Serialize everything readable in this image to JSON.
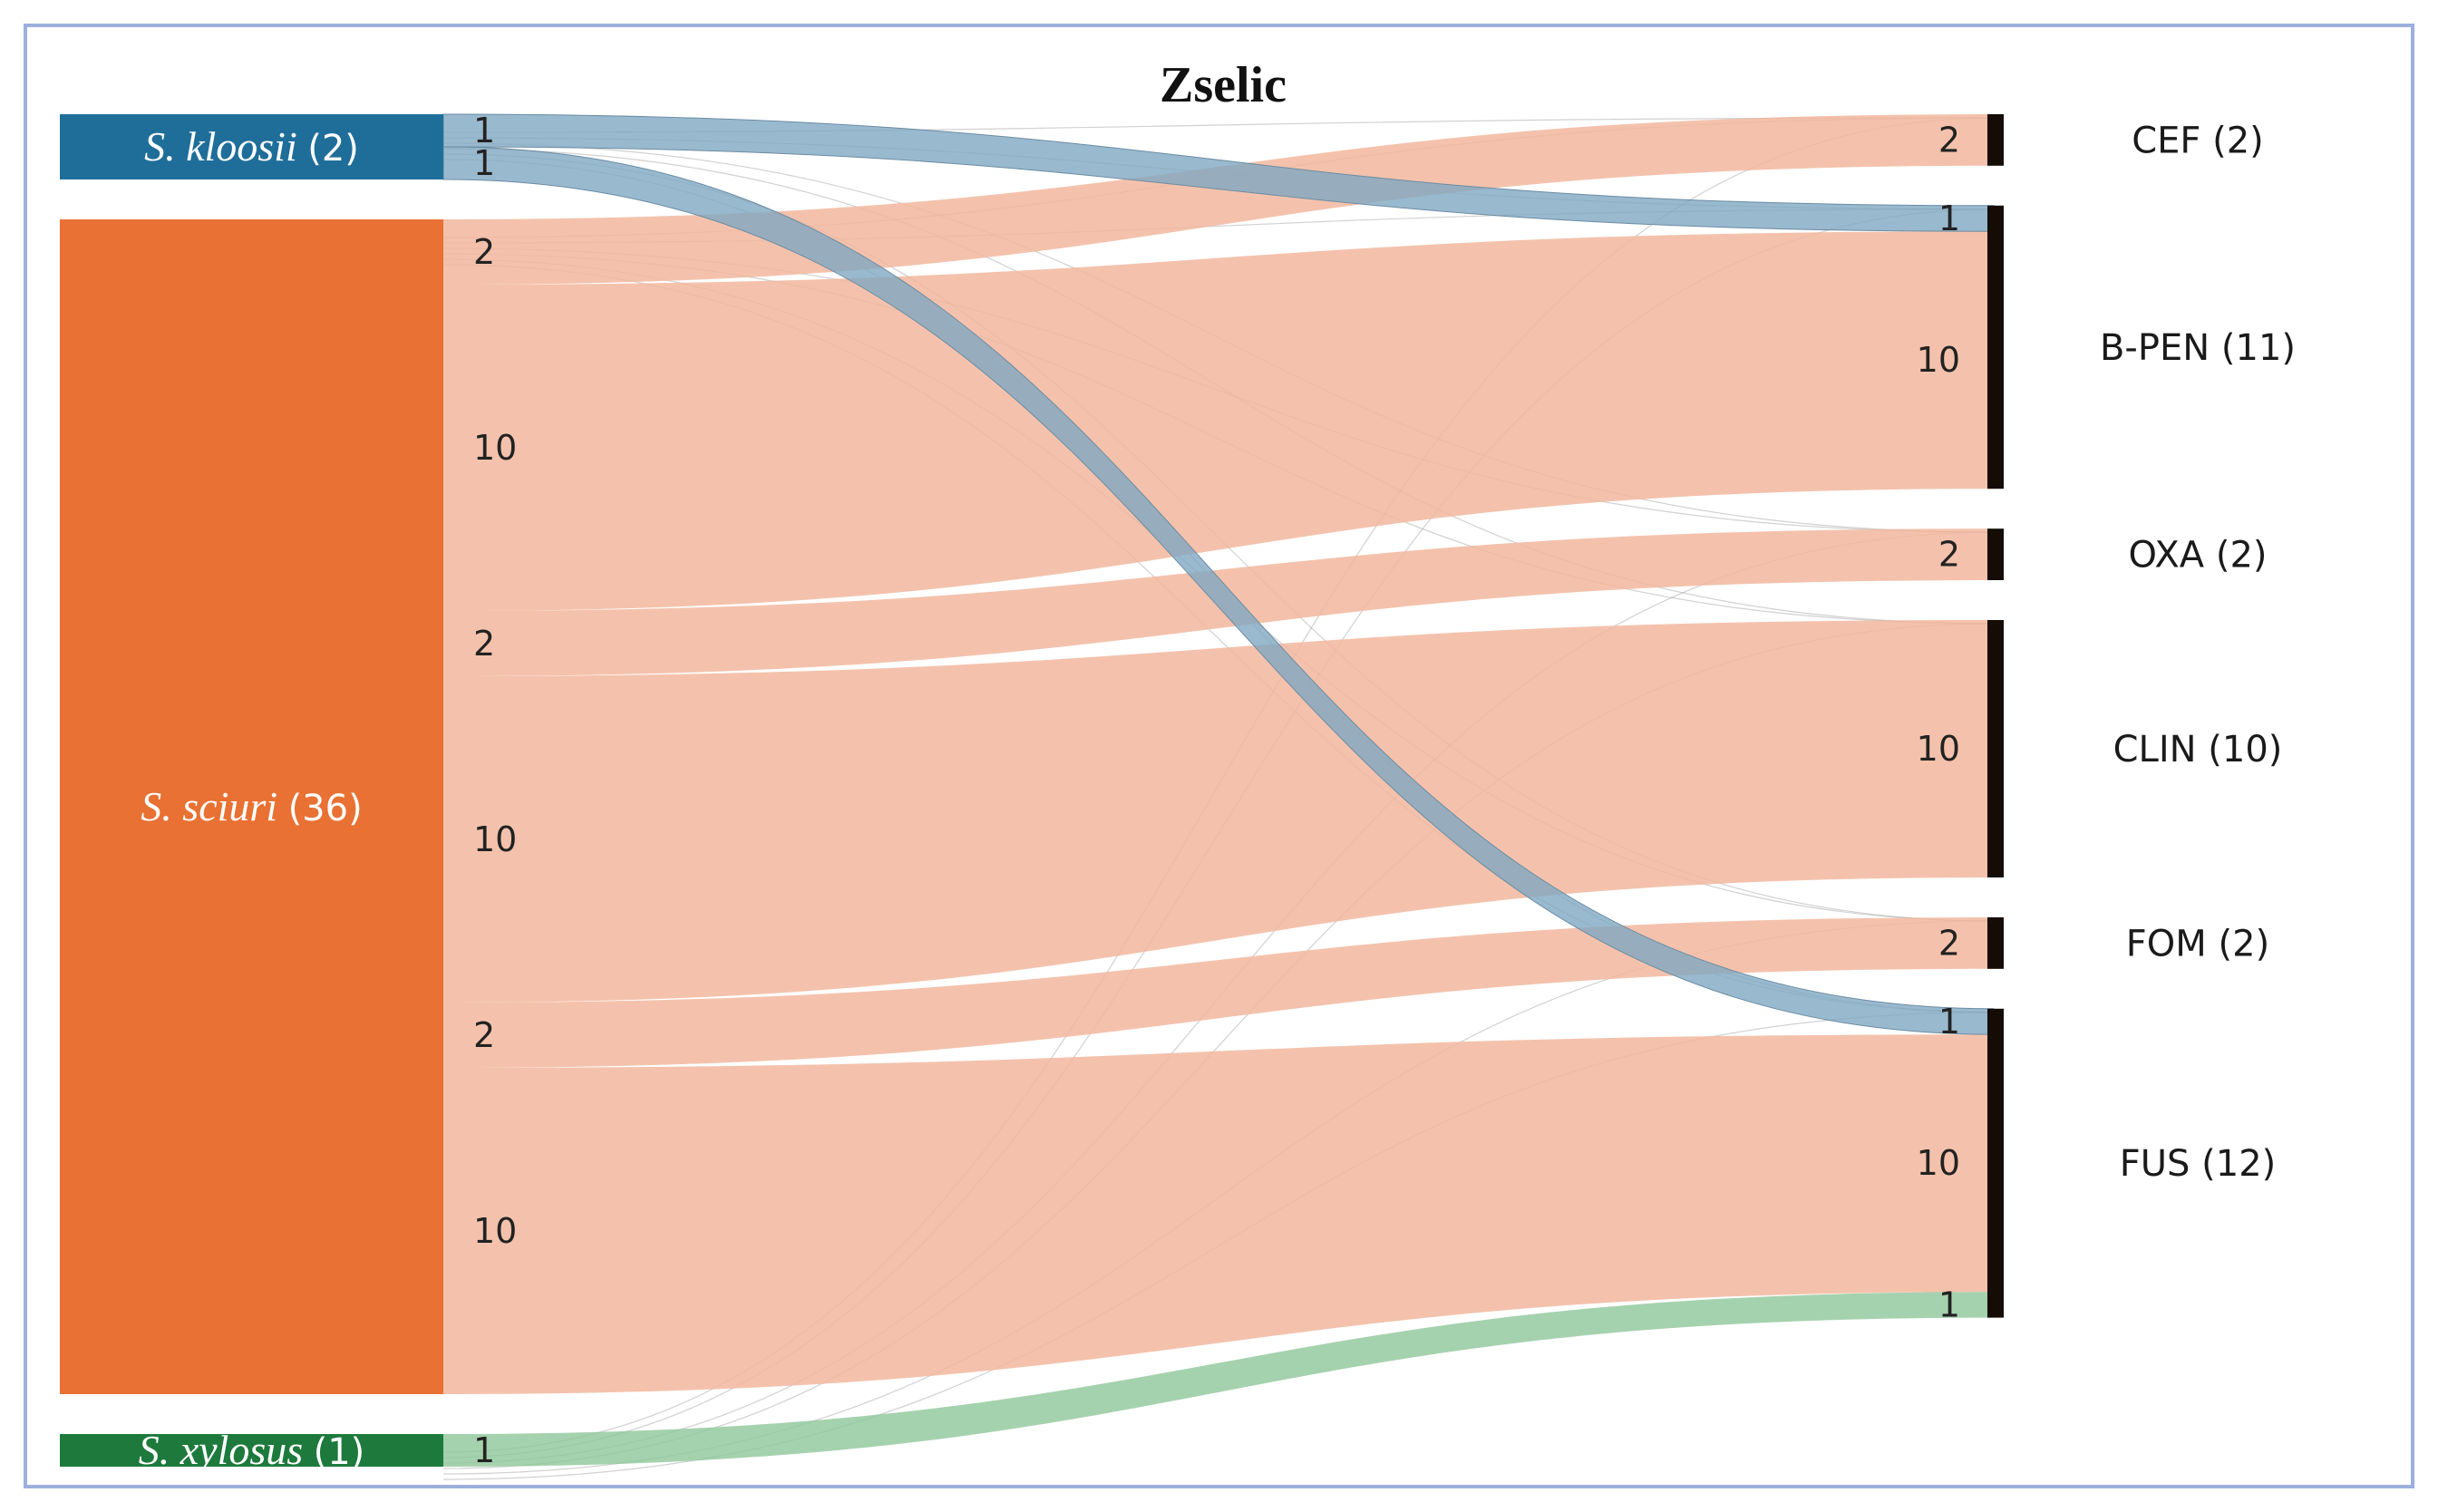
{
  "chart_data": {
    "type": "sankey",
    "title": "Zselic",
    "sources": [
      {
        "name": "S. kloosii",
        "count_label": "(2)",
        "value": 2,
        "color": "#1f6e99"
      },
      {
        "name": "S. sciuri",
        "count_label": "(36)",
        "value": 36,
        "color": "#e87133"
      },
      {
        "name": "S. xylosus",
        "count_label": "(1)",
        "value": 1,
        "color": "#1d7a3c"
      }
    ],
    "targets": [
      {
        "name": "CEF (2)",
        "value": 2
      },
      {
        "name": "B-PEN (11)",
        "value": 11
      },
      {
        "name": "OXA (2)",
        "value": 2
      },
      {
        "name": "CLIN (10)",
        "value": 10
      },
      {
        "name": "FOM (2)",
        "value": 2
      },
      {
        "name": "FUS (12)",
        "value": 12
      }
    ],
    "links": [
      {
        "source": "S. kloosii",
        "target": "B-PEN (11)",
        "value": 1,
        "label": "1"
      },
      {
        "source": "S. kloosii",
        "target": "FUS (12)",
        "value": 1,
        "label": "1"
      },
      {
        "source": "S. sciuri",
        "target": "CEF (2)",
        "value": 2,
        "label": "2"
      },
      {
        "source": "S. sciuri",
        "target": "B-PEN (11)",
        "value": 10,
        "label": "10"
      },
      {
        "source": "S. sciuri",
        "target": "OXA (2)",
        "value": 2,
        "label": "2"
      },
      {
        "source": "S. sciuri",
        "target": "CLIN (10)",
        "value": 10,
        "label": "10"
      },
      {
        "source": "S. sciuri",
        "target": "FOM (2)",
        "value": 2,
        "label": "2"
      },
      {
        "source": "S. sciuri",
        "target": "FUS (12)",
        "value": 10,
        "label": "10"
      },
      {
        "source": "S. xylosus",
        "target": "FUS (12)",
        "value": 1,
        "label": "1"
      }
    ],
    "link_colors": {
      "S. kloosii": "#7fa7c2",
      "S. sciuri": "#f2b79d",
      "S. xylosus": "#8fc79a"
    },
    "target_bar_color": "#140c05"
  }
}
